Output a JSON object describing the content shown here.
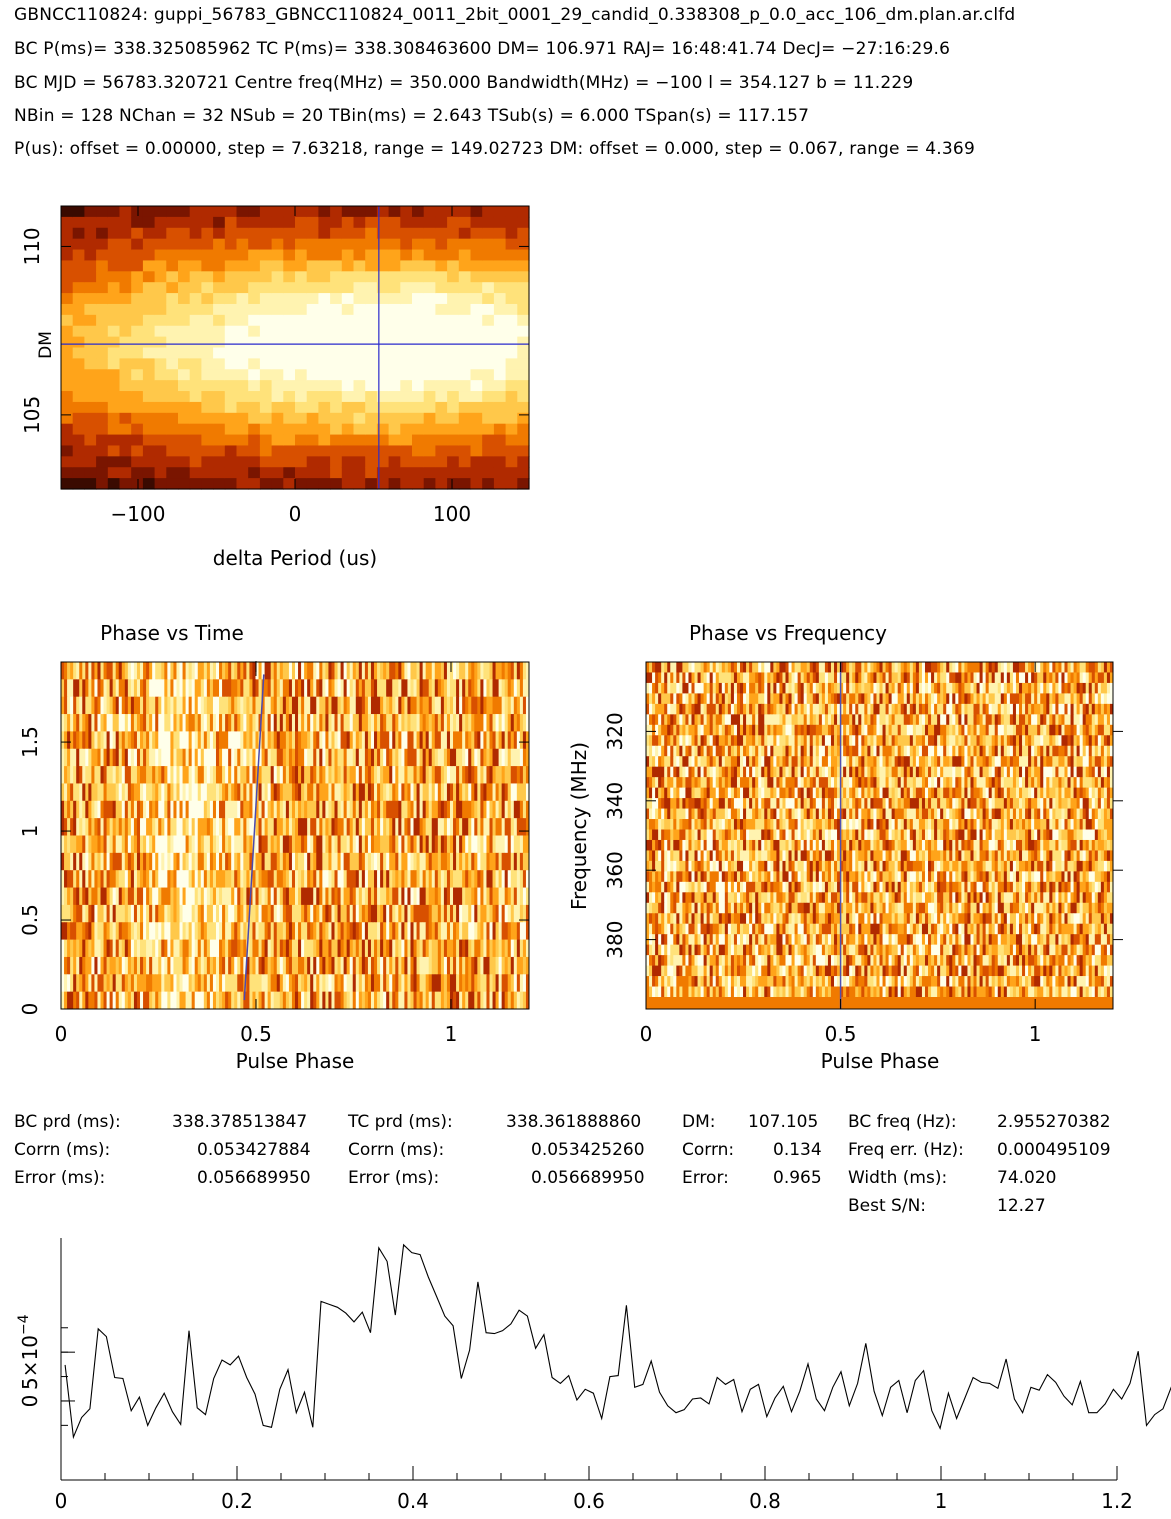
{
  "header": {
    "title": "GBNCC110824: guppi_56783_GBNCC110824_0011_2bit_0001_29_candid_0.338308_p_0.0_acc_106_dm.plan.ar.clfd",
    "line1": "BC P(ms)= 338.325085962 TC P(ms)= 338.308463600 DM= 106.971 RAJ= 16:48:41.74 DecJ= −27:16:29.6",
    "line2": "BC MJD = 56783.320721 Centre freq(MHz) = 350.000 Bandwidth(MHz) = −100 l = 354.127 b = 11.229",
    "line3": "NBin = 128 NChan = 32 NSub = 20 TBin(ms) = 2.643 TSub(s) = 6.000 TSpan(s) = 117.157",
    "line4": "P(us): offset = 0.00000, step = 7.63218, range = 149.02723 DM: offset = 0.000, step = 0.067, range = 4.369"
  },
  "colors": {
    "heat": [
      "#3a0a00",
      "#7a1500",
      "#b02a00",
      "#d85000",
      "#f07a00",
      "#ffa41a",
      "#ffc84a",
      "#ffe27a",
      "#fff3b0",
      "#ffffea"
    ],
    "cursor": "#2a2acc",
    "line": "#000000"
  },
  "stats": {
    "bc_prd_label": "BC prd (ms):",
    "bc_prd_value": "338.378513847",
    "bc_corrn_label": "Corrn (ms):",
    "bc_corrn_value": "0.053427884",
    "bc_error_label": "Error (ms):",
    "bc_error_value": "0.056689950",
    "tc_prd_label": "TC prd (ms):",
    "tc_prd_value": "338.361888860",
    "tc_corrn_label": "Corrn (ms):",
    "tc_corrn_value": "0.053425260",
    "tc_error_label": "Error (ms):",
    "tc_error_value": "0.056689950",
    "dm_label": "DM:",
    "dm_value": "107.105",
    "dm_corrn_label": "Corrn:",
    "dm_corrn_value": "0.134",
    "dm_error_label": "Error:",
    "dm_error_value": "0.965",
    "bc_freq_label": "BC freq (Hz):",
    "bc_freq_value": "2.955270382",
    "freq_err_label": "Freq err. (Hz):",
    "freq_err_value": "0.000495109",
    "width_label": "Width (ms):",
    "width_value": "74.020",
    "sn_label": "Best S/N:",
    "sn_value": "12.27"
  },
  "chart_data": [
    {
      "id": "period-dm",
      "type": "heatmap",
      "title": "",
      "xlabel": "delta Period (us)",
      "ylabel": "DM",
      "xlim": [
        -149.03,
        149.03
      ],
      "ylim": [
        102.8,
        111.2
      ],
      "xticks": [
        "−100",
        "0",
        "100"
      ],
      "xtick_values": [
        -100,
        0,
        100
      ],
      "yticks": [
        "105",
        "110"
      ],
      "ytick_values": [
        105,
        110
      ],
      "peak": {
        "x": 53.4,
        "y": 107.1
      }
    },
    {
      "id": "phase-time",
      "type": "heatmap",
      "title": "Phase vs Time",
      "xlabel": "Pulse Phase",
      "ylabel": "",
      "xlim": [
        0,
        1.2
      ],
      "ylim": [
        0,
        1.95
      ],
      "xticks": [
        "0",
        "0.5",
        "1"
      ],
      "xtick_values": [
        0,
        0.5,
        1
      ],
      "yticks": [
        "0",
        "0.5",
        "1",
        "1.5"
      ],
      "ytick_values": [
        0,
        0.5,
        1,
        1.5
      ],
      "cursor_line": {
        "x_start": 0.47,
        "y_start": 0.05,
        "x_end": 0.52,
        "y_end": 1.88
      }
    },
    {
      "id": "phase-freq",
      "type": "heatmap",
      "title": "Phase vs Frequency",
      "xlabel": "Pulse Phase",
      "ylabel": "Frequency (MHz)",
      "xlim": [
        0,
        1.2
      ],
      "ylim_top_to_bottom": [
        300,
        400
      ],
      "xticks": [
        "0",
        "0.5",
        "1"
      ],
      "xtick_values": [
        0,
        0.5,
        1
      ],
      "yticks": [
        "320",
        "340",
        "360",
        "380"
      ],
      "ytick_values": [
        320,
        340,
        360,
        380
      ],
      "cursor_x": 0.5
    },
    {
      "id": "profile",
      "type": "line",
      "title": "",
      "xlabel": "",
      "ylabel": "",
      "xlim": [
        0,
        1.2
      ],
      "ylim": [
        -0.00081,
        0.00167
      ],
      "xticks": [
        "0",
        "0.2",
        "0.4",
        "0.6",
        "0.8",
        "1",
        "1.2"
      ],
      "xtick_values": [
        0,
        0.2,
        0.4,
        0.6,
        0.8,
        1.0,
        1.2
      ],
      "ytick_values": [
        0,
        0.0005
      ],
      "y_label_text": "5×10",
      "y_label_exp": "−4",
      "y_zero_label": "0",
      "series": [
        {
          "x_start": 0.0047,
          "x_step": 0.00938,
          "values": [
            0.00037,
            -0.00037,
            -0.00017,
            -8e-05,
            0.00074,
            0.00066,
            0.00024,
            0.00023,
            -0.0001,
            4e-05,
            -0.00025,
            -7e-05,
            8e-05,
            -0.00011,
            -0.00024,
            0.00072,
            -7e-05,
            -0.00014,
            0.00023,
            0.00042,
            0.00037,
            0.00046,
            0.00024,
            7e-05,
            -0.00025,
            -0.00027,
            0.00012,
            0.00032,
            -0.00012,
            9e-05,
            -0.00027,
            0.00102,
            0.00099,
            0.00096,
            0.0009,
            0.00081,
            0.00091,
            0.0007,
            0.00157,
            0.00143,
            0.00088,
            0.0016,
            0.00152,
            0.0015,
            0.00127,
            0.00107,
            0.00087,
            0.00077,
            0.00023,
            0.00052,
            0.00122,
            0.0007,
            0.00069,
            0.00072,
            0.00079,
            0.00093,
            0.00087,
            0.00054,
            0.00068,
            0.00024,
            0.00018,
            0.00026,
            1e-05,
            0.00012,
            8e-05,
            -0.00018,
            0.00025,
            0.00026,
            0.00098,
            0.00014,
            0.00017,
            0.00041,
            9e-05,
            -5e-05,
            -0.00012,
            -9e-05,
            2e-05,
            3e-05,
            -3e-05,
            0.00024,
            0.00017,
            0.00022,
            -0.00011,
            0.00012,
            0.00017,
            -0.00016,
            3e-05,
            0.00015,
            -0.00011,
            0.0001,
            0.00038,
            2e-05,
            -0.0001,
            0.00014,
            0.0003,
            -5e-05,
            0.00018,
            0.00059,
            0.0001,
            -0.00015,
            0.00014,
            0.00021,
            -0.00012,
            0.00021,
            0.00031,
            -0.0001,
            -0.00028,
            8e-05,
            -0.00018,
            3e-05,
            0.00024,
            0.00019,
            0.00018,
            0.00013,
            0.00043,
            2e-05,
            -0.00012,
            0.00014,
            0.00011,
            0.00027,
            0.00019,
            5e-05,
            -4e-05,
            0.0002,
            -0.00012,
            -0.00012,
            -3e-05,
            0.00012,
            2e-05,
            0.00018,
            0.00051,
            -0.00025,
            -0.00014,
            -8e-05,
            0.00014,
            0.00032,
            0.0006,
            0.00031,
            -0.00013,
            -4e-05,
            0.00047,
            0.00035,
            0.00035,
            0.00026,
            -0.00028,
            0.00012,
            0.00022,
            -4e-05,
            0.00025,
            0.00029,
            6e-05,
            -0.00013,
            -0.00024,
            0.00037,
            0.00055,
            0.0005,
            0.00031,
            0.00014,
            -0.00023,
            -0.0003,
            0.00013,
            0.00029,
            0.00024,
            0.00019,
            0.00024,
            0.00029,
            0.00029,
            0.00022,
            0.00031,
            0.00045,
            0.00027,
            0.00047,
            0.00019,
            0.0002,
            -0.00024
          ]
        }
      ]
    }
  ]
}
